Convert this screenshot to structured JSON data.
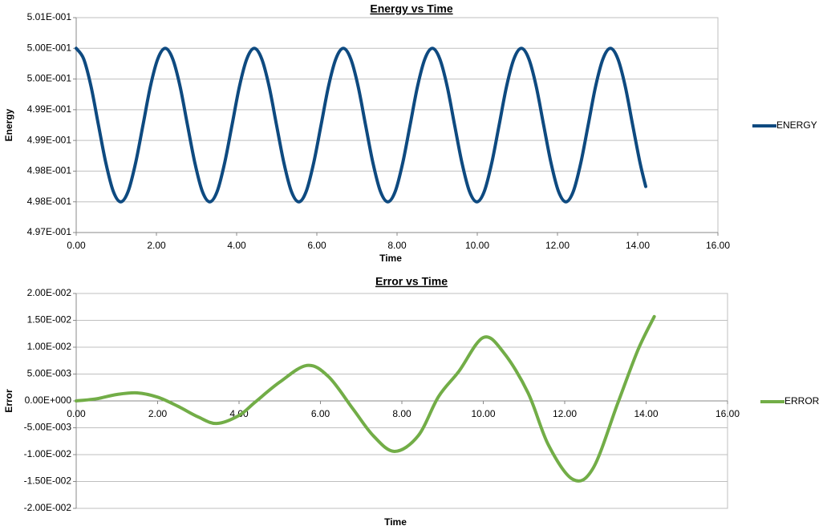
{
  "chart_data": [
    {
      "type": "line",
      "title": "Energy vs Time",
      "x_label": "Time",
      "y_label": "Energy",
      "x": [
        0,
        0.185,
        0.37,
        0.555,
        0.74,
        0.925,
        1.11,
        1.295,
        1.48,
        1.665,
        1.85,
        2.035,
        2.22,
        2.405,
        2.59,
        2.775,
        2.96,
        3.145,
        3.33,
        3.515,
        3.7,
        3.885,
        4.07,
        4.255,
        4.44,
        4.625,
        4.81,
        4.995,
        5.18,
        5.365,
        5.55,
        5.735,
        5.92,
        6.105,
        6.29,
        6.475,
        6.66,
        6.845,
        7.03,
        7.215,
        7.4,
        7.585,
        7.77,
        7.955,
        8.14,
        8.325,
        8.51,
        8.695,
        8.88,
        9.065,
        9.25,
        9.435,
        9.62,
        9.805,
        9.99,
        10.175,
        10.36,
        10.545,
        10.73,
        10.915,
        11.1,
        11.285,
        11.47,
        11.655,
        11.84,
        12.025,
        12.21,
        12.395,
        12.58,
        12.765,
        12.95,
        13.135,
        13.32,
        13.505,
        13.69,
        13.875,
        14.06,
        14.2
      ],
      "series": [
        {
          "name": "ENERGY",
          "color": "#0e4a80",
          "values": [
            0.5005,
            0.50033,
            0.49988,
            0.49925,
            0.49863,
            0.49817,
            0.498,
            0.49817,
            0.49863,
            0.49925,
            0.49988,
            0.50033,
            0.5005,
            0.50033,
            0.49988,
            0.49925,
            0.49863,
            0.49817,
            0.498,
            0.49817,
            0.49863,
            0.49925,
            0.49988,
            0.50033,
            0.5005,
            0.50033,
            0.49988,
            0.49925,
            0.49863,
            0.49817,
            0.498,
            0.49817,
            0.49863,
            0.49925,
            0.49988,
            0.50033,
            0.5005,
            0.50033,
            0.49988,
            0.49925,
            0.49863,
            0.49817,
            0.498,
            0.49817,
            0.49863,
            0.49925,
            0.49988,
            0.50033,
            0.5005,
            0.50033,
            0.49988,
            0.49925,
            0.49863,
            0.49817,
            0.498,
            0.49817,
            0.49863,
            0.49925,
            0.49988,
            0.50033,
            0.5005,
            0.50033,
            0.49988,
            0.49925,
            0.49863,
            0.49817,
            0.498,
            0.49817,
            0.49863,
            0.49925,
            0.49988,
            0.50033,
            0.5005,
            0.50033,
            0.49988,
            0.49925,
            0.49863,
            0.49825
          ]
        }
      ],
      "xlim": [
        0,
        16
      ],
      "xticks": [
        {
          "value": 0,
          "label": "0.00"
        },
        {
          "value": 2,
          "label": "2.00"
        },
        {
          "value": 4,
          "label": "4.00"
        },
        {
          "value": 6,
          "label": "6.00"
        },
        {
          "value": 8,
          "label": "8.00"
        },
        {
          "value": 10,
          "label": "10.00"
        },
        {
          "value": 12,
          "label": "12.00"
        },
        {
          "value": 14,
          "label": "14.00"
        },
        {
          "value": 16,
          "label": "16.00"
        }
      ],
      "ylim": [
        0.4975,
        0.501
      ],
      "yticks": [
        {
          "value": 0.4975,
          "label": "4.97E-001"
        },
        {
          "value": 0.498,
          "label": "4.98E-001"
        },
        {
          "value": 0.4985,
          "label": "4.98E-001"
        },
        {
          "value": 0.499,
          "label": "4.99E-001"
        },
        {
          "value": 0.4995,
          "label": "4.99E-001"
        },
        {
          "value": 0.5,
          "label": "5.00E-001"
        },
        {
          "value": 0.5005,
          "label": "5.00E-001"
        },
        {
          "value": 0.501,
          "label": "5.01E-001"
        }
      ],
      "grid": true,
      "legend": "right"
    },
    {
      "type": "line",
      "title": "Error vs Time",
      "x_label": "Time",
      "y_label": "Error",
      "x": [
        0,
        0.5,
        1,
        1.5,
        2,
        2.5,
        3,
        3.45,
        4,
        4.4,
        5,
        5.67,
        6.2,
        6.8,
        7.3,
        7.82,
        8.4,
        8.9,
        9.4,
        10,
        10.5,
        11.1,
        11.6,
        12.2,
        12.7,
        13.3,
        13.8,
        14.2
      ],
      "series": [
        {
          "name": "ERROR",
          "color": "#72ad47",
          "values": [
            0,
            0.0004,
            0.0012,
            0.0015,
            0.0007,
            -0.001,
            -0.003,
            -0.0042,
            -0.0027,
            -0.0002,
            0.0035,
            0.0066,
            0.0045,
            -0.0015,
            -0.0065,
            -0.0094,
            -0.0065,
            0.0008,
            0.0055,
            0.0118,
            0.009,
            0.0015,
            -0.0082,
            -0.0146,
            -0.0125,
            -0.0005,
            0.0095,
            0.0157
          ]
        }
      ],
      "xlim": [
        0,
        16
      ],
      "xticks": [
        {
          "value": 0,
          "label": "0.00"
        },
        {
          "value": 2,
          "label": "2.00"
        },
        {
          "value": 4,
          "label": "4.00"
        },
        {
          "value": 6,
          "label": "6.00"
        },
        {
          "value": 8,
          "label": "8.00"
        },
        {
          "value": 10,
          "label": "10.00"
        },
        {
          "value": 12,
          "label": "12.00"
        },
        {
          "value": 14,
          "label": "14.00"
        },
        {
          "value": 16,
          "label": "16.00"
        }
      ],
      "ylim": [
        -0.02,
        0.02
      ],
      "yticks": [
        {
          "value": -0.02,
          "label": "-2.00E-002"
        },
        {
          "value": -0.015,
          "label": "-1.50E-002"
        },
        {
          "value": -0.01,
          "label": "-1.00E-002"
        },
        {
          "value": -0.005,
          "label": "-5.00E-003"
        },
        {
          "value": 0,
          "label": "0.00E+000"
        },
        {
          "value": 0.005,
          "label": "5.00E-003"
        },
        {
          "value": 0.01,
          "label": "1.00E-002"
        },
        {
          "value": 0.015,
          "label": "1.50E-002"
        },
        {
          "value": 0.02,
          "label": "2.00E-002"
        }
      ],
      "grid": true,
      "legend": "right"
    }
  ]
}
